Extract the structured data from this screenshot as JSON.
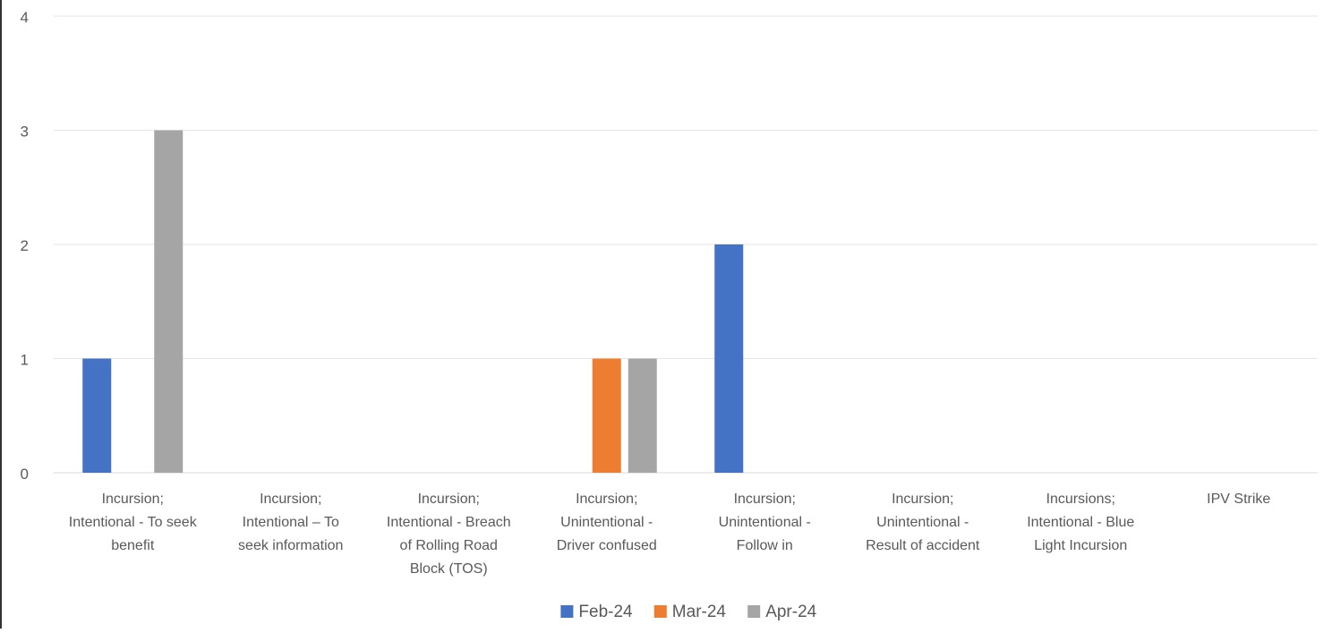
{
  "chart_data": {
    "type": "bar",
    "categories": [
      [
        "Incursion;",
        "Intentional - To seek",
        "benefit"
      ],
      [
        "Incursion;",
        "Intentional – To",
        "seek information"
      ],
      [
        "Incursion;",
        "Intentional - Breach",
        "of Rolling Road",
        "Block (TOS)"
      ],
      [
        "Incursion;",
        "Unintentional -",
        "Driver confused"
      ],
      [
        "Incursion;",
        "Unintentional -",
        "Follow in"
      ],
      [
        "Incursion;",
        "Unintentional -",
        "Result of accident"
      ],
      [
        "Incursions;",
        "Intentional - Blue",
        "Light Incursion"
      ],
      [
        "IPV Strike"
      ]
    ],
    "series": [
      {
        "name": "Feb-24",
        "color": "#4472C4",
        "values": [
          1,
          0,
          0,
          0,
          2,
          0,
          0,
          0
        ]
      },
      {
        "name": "Mar-24",
        "color": "#ED7D31",
        "values": [
          0,
          0,
          0,
          1,
          0,
          0,
          0,
          0
        ]
      },
      {
        "name": "Apr-24",
        "color": "#A5A5A5",
        "values": [
          3,
          0,
          0,
          1,
          0,
          0,
          0,
          0
        ]
      }
    ],
    "ylim": [
      0,
      4
    ],
    "yticks": [
      "0",
      "1",
      "2",
      "3",
      "4"
    ],
    "grid": true,
    "legend": "bottom"
  }
}
